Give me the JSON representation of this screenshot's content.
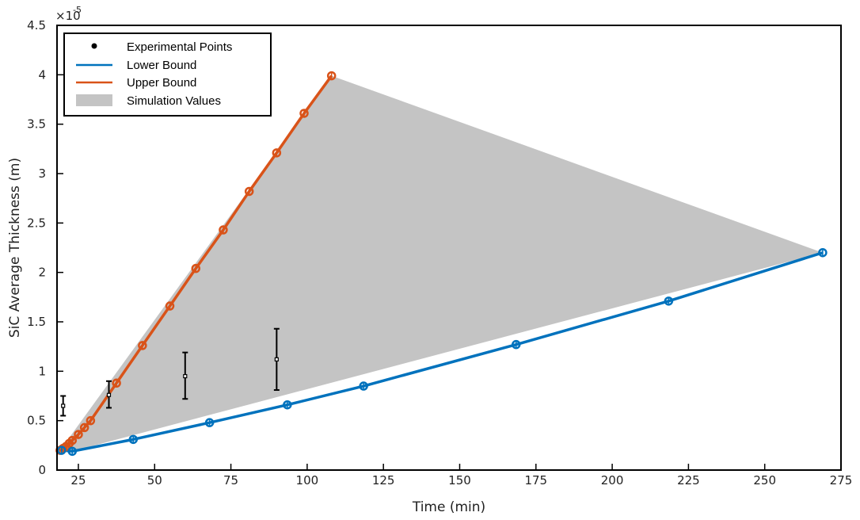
{
  "chart_data": {
    "type": "line",
    "xlabel": "Time (min)",
    "ylabel": "SiC Average Thickness (m)",
    "y_multiplier_label": "×10",
    "y_multiplier_exponent": "-5",
    "xlim": [
      18,
      275
    ],
    "ylim": [
      0,
      4.5
    ],
    "x_ticks": [
      25,
      50,
      75,
      100,
      125,
      150,
      175,
      200,
      225,
      250,
      275
    ],
    "y_ticks": [
      0,
      0.5,
      1,
      1.5,
      2,
      2.5,
      3,
      3.5,
      4,
      4.5
    ],
    "y_tick_labels": [
      "0",
      "0.5",
      "1",
      "1.5",
      "2",
      "2.5",
      "3",
      "3.5",
      "4",
      "4.5"
    ],
    "grid": false,
    "legend_position": "top-left",
    "legend": {
      "experimental": "Experimental Points",
      "lower": "Lower Bound",
      "upper": "Upper Bound",
      "simulation": "Simulation Values"
    },
    "colors": {
      "lower": "#0072BD",
      "upper": "#D95319",
      "fill": "#c4c4c4",
      "points": "#000000"
    },
    "series": [
      {
        "name": "Lower Bound",
        "x": [
          19.5,
          23,
          43,
          68,
          93.5,
          118.5,
          168.5,
          218.5,
          269
        ],
        "y": [
          0.2,
          0.19,
          0.31,
          0.48,
          0.66,
          0.85,
          1.27,
          1.71,
          2.2
        ]
      },
      {
        "name": "Upper Bound",
        "x": [
          19,
          20,
          21,
          22,
          23,
          25,
          27,
          29,
          37.5,
          46,
          55,
          63.5,
          72.5,
          81,
          90,
          99,
          108
        ],
        "y": [
          0.2,
          0.22,
          0.24,
          0.27,
          0.3,
          0.36,
          0.43,
          0.5,
          0.88,
          1.26,
          1.66,
          2.04,
          2.43,
          2.82,
          3.21,
          3.61,
          3.99
        ]
      },
      {
        "name": "Experimental Points",
        "x": [
          20,
          35,
          60,
          90
        ],
        "y": [
          0.65,
          0.76,
          0.95,
          1.12
        ],
        "err_low": [
          0.55,
          0.63,
          0.72,
          0.81
        ],
        "err_high": [
          0.75,
          0.9,
          1.19,
          1.43
        ]
      }
    ],
    "simulation_region": {
      "name": "Simulation Values",
      "vertices_x": [
        19,
        108,
        269,
        23
      ],
      "vertices_y": [
        0.2,
        3.99,
        2.2,
        0.19
      ]
    }
  }
}
